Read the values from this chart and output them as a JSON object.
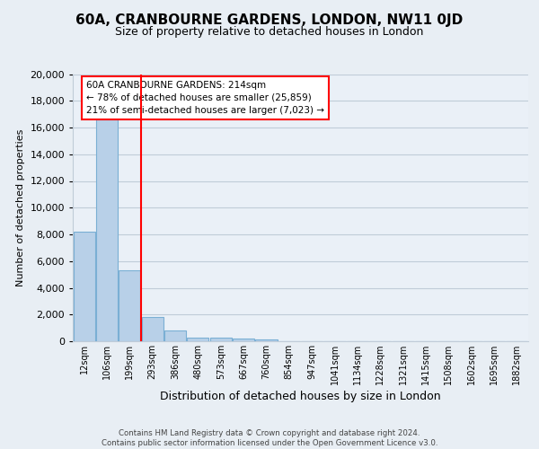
{
  "title": "60A, CRANBOURNE GARDENS, LONDON, NW11 0JD",
  "subtitle": "Size of property relative to detached houses in London",
  "xlabel": "Distribution of detached houses by size in London",
  "ylabel": "Number of detached properties",
  "bar_values": [
    8200,
    16600,
    5300,
    1800,
    800,
    300,
    250,
    200,
    150,
    0,
    0,
    0,
    0,
    0,
    0,
    0,
    0,
    0,
    0,
    0
  ],
  "bar_labels": [
    "12sqm",
    "106sqm",
    "199sqm",
    "293sqm",
    "386sqm",
    "480sqm",
    "573sqm",
    "667sqm",
    "760sqm",
    "854sqm",
    "947sqm",
    "1041sqm",
    "1134sqm",
    "1228sqm",
    "1321sqm",
    "1415sqm",
    "1508sqm",
    "1602sqm",
    "1695sqm",
    "1882sqm"
  ],
  "bar_color": "#b8d0e8",
  "bar_edge_color": "#7aafd4",
  "annotation_line1": "60A CRANBOURNE GARDENS: 214sqm",
  "annotation_line2": "← 78% of detached houses are smaller (25,859)",
  "annotation_line3": "21% of semi-detached houses are larger (7,023) →",
  "vline_x": 2.5,
  "vline_color": "red",
  "ylim": [
    0,
    20000
  ],
  "yticks": [
    0,
    2000,
    4000,
    6000,
    8000,
    10000,
    12000,
    14000,
    16000,
    18000,
    20000
  ],
  "footer_text": "Contains HM Land Registry data © Crown copyright and database right 2024.\nContains public sector information licensed under the Open Government Licence v3.0.",
  "bg_color": "#e8eef4",
  "plot_bg_color": "#eaf0f7",
  "grid_color": "#c0ccd8"
}
